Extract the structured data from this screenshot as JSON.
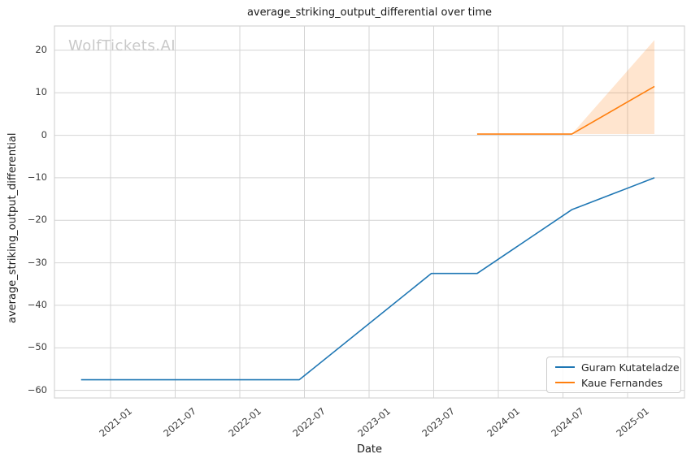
{
  "watermark": "WolfTickets.AI",
  "colors": {
    "series_blue": "#1f77b4",
    "series_orange": "#ff7f0e",
    "band_fill": "#ff7f0e",
    "grid": "#d4d4d4",
    "text_dark": "#1a1a1a",
    "tick_text": "#3b3b3b",
    "watermark_gray": "#c9c9c9"
  },
  "legend": {
    "items": [
      {
        "label": "Guram Kutateladze",
        "color": "#1f77b4"
      },
      {
        "label": "Kaue Fernandes",
        "color": "#ff7f0e"
      }
    ]
  },
  "chart_data": {
    "type": "line",
    "title": "average_striking_output_differential over time",
    "xlabel": "Date",
    "ylabel": "average_striking_output_differential",
    "grid": true,
    "legend_position": "lower right",
    "xlim": [
      "2020-08",
      "2025-06"
    ],
    "ylim": [
      -62,
      26
    ],
    "x_tick_labels": [
      "2021-01",
      "2021-07",
      "2022-01",
      "2022-07",
      "2023-01",
      "2023-07",
      "2024-01",
      "2024-07",
      "2025-01"
    ],
    "y_ticks": [
      20,
      10,
      0,
      -10,
      -20,
      -30,
      -40,
      -50,
      -60
    ],
    "y_tick_labels": [
      "20",
      "10",
      "0",
      "−10",
      "−20",
      "−30",
      "−40",
      "−50",
      "−60"
    ],
    "series": [
      {
        "name": "Guram Kutateladze",
        "color": "#1f77b4",
        "points": [
          [
            "2020-10-09",
            -57.5
          ],
          [
            "2022-06-17",
            -57.5
          ],
          [
            "2023-06-25",
            -32.5
          ],
          [
            "2023-11-02",
            -32.5
          ],
          [
            "2024-07-26",
            -17.5
          ],
          [
            "2025-03-16",
            -10.0
          ]
        ]
      },
      {
        "name": "Kaue Fernandes",
        "color": "#ff7f0e",
        "points": [
          [
            "2023-11-02",
            0.3
          ],
          [
            "2024-07-26",
            0.3
          ],
          [
            "2025-03-16",
            11.5
          ]
        ],
        "band": {
          "upper": [
            [
              "2024-07-26",
              0.3
            ],
            [
              "2025-03-16",
              22.4
            ]
          ],
          "lower": [
            [
              "2024-07-26",
              0.3
            ],
            [
              "2025-03-16",
              0.3
            ]
          ],
          "opacity": 0.2
        }
      }
    ]
  }
}
